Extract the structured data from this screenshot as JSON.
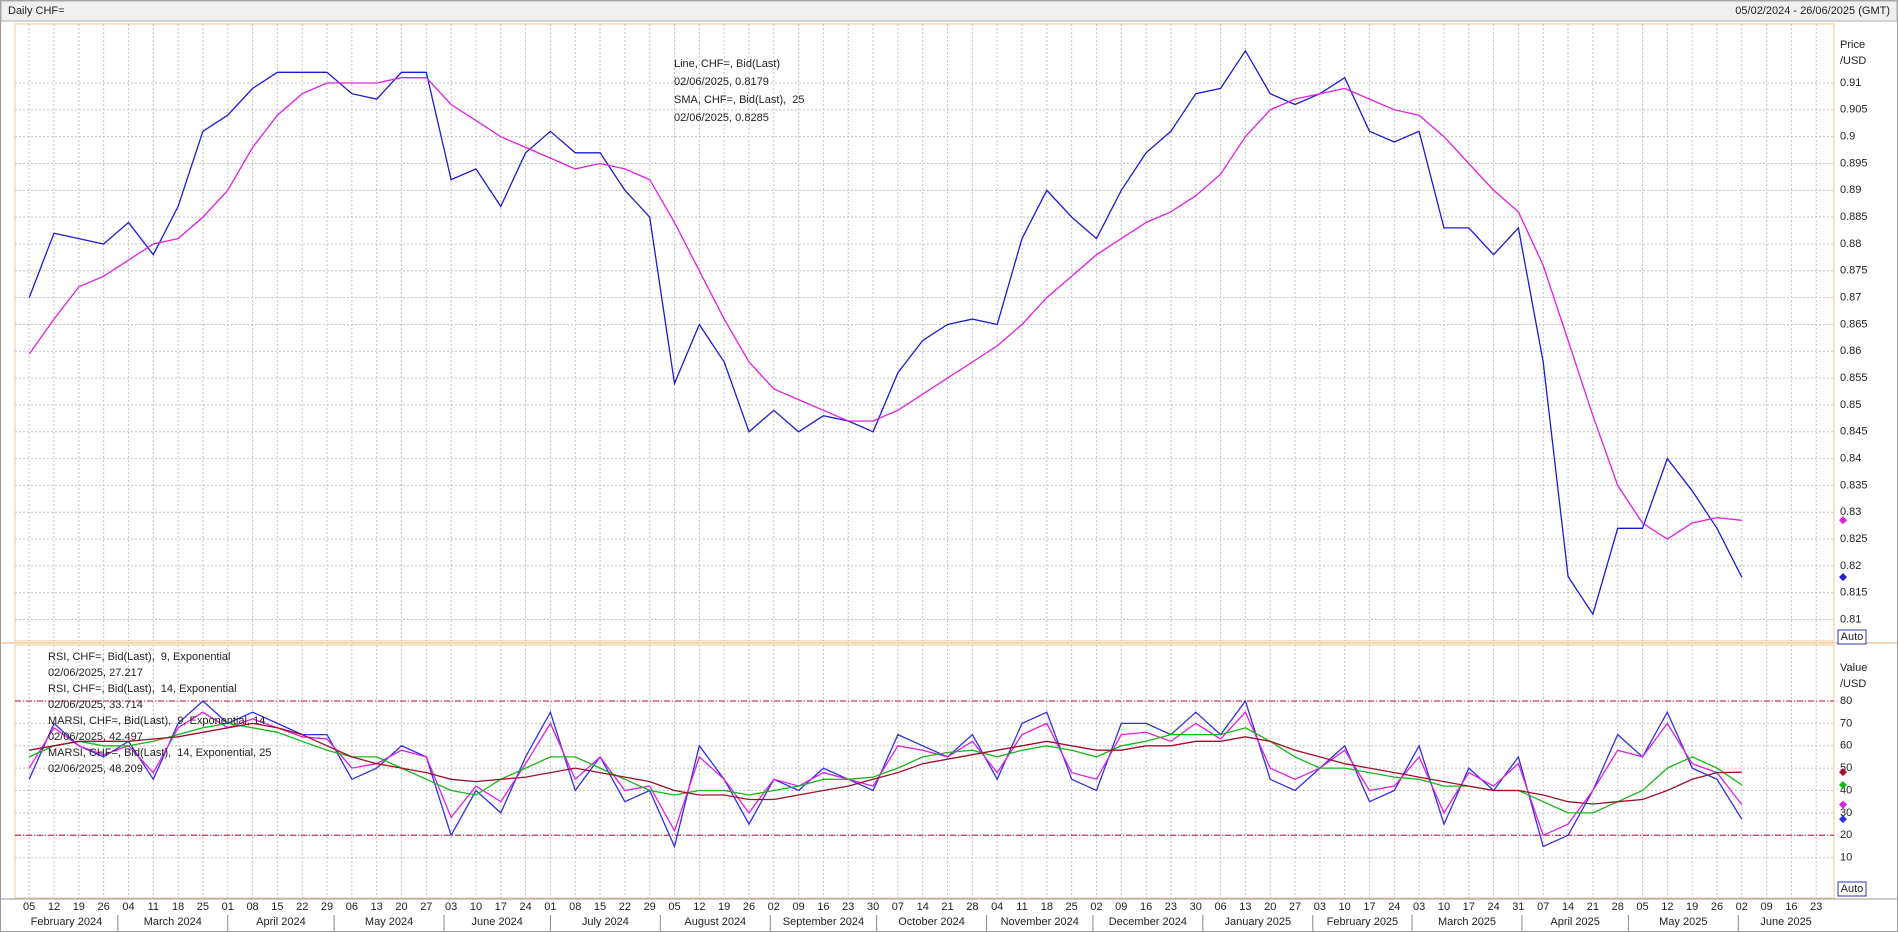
{
  "header": {
    "title": "Daily CHF=",
    "date_range": "05/02/2024 - 26/06/2025 (GMT)"
  },
  "chart_data": [
    {
      "type": "line",
      "y_label": [
        "Price",
        "/USD"
      ],
      "auto_label": "Auto",
      "ylim": [
        0.806,
        0.921
      ],
      "yticks": [
        0.81,
        0.815,
        0.82,
        0.825,
        0.83,
        0.835,
        0.84,
        0.845,
        0.85,
        0.855,
        0.86,
        0.865,
        0.87,
        0.875,
        0.88,
        0.885,
        0.89,
        0.895,
        0.9,
        0.905,
        0.91
      ],
      "grid": true,
      "x": [
        "2024-02-05",
        "2024-02-12",
        "2024-02-19",
        "2024-02-26",
        "2024-03-04",
        "2024-03-11",
        "2024-03-18",
        "2024-03-25",
        "2024-04-01",
        "2024-04-08",
        "2024-04-15",
        "2024-04-22",
        "2024-04-29",
        "2024-05-06",
        "2024-05-13",
        "2024-05-20",
        "2024-05-27",
        "2024-06-03",
        "2024-06-10",
        "2024-06-17",
        "2024-06-24",
        "2024-07-01",
        "2024-07-08",
        "2024-07-15",
        "2024-07-22",
        "2024-07-29",
        "2024-08-05",
        "2024-08-12",
        "2024-08-19",
        "2024-08-26",
        "2024-09-02",
        "2024-09-09",
        "2024-09-16",
        "2024-09-23",
        "2024-09-30",
        "2024-10-07",
        "2024-10-14",
        "2024-10-21",
        "2024-10-28",
        "2024-11-04",
        "2024-11-11",
        "2024-11-18",
        "2024-11-25",
        "2024-12-02",
        "2024-12-09",
        "2024-12-16",
        "2024-12-23",
        "2024-12-30",
        "2025-01-06",
        "2025-01-13",
        "2025-01-20",
        "2025-01-27",
        "2025-02-03",
        "2025-02-10",
        "2025-02-17",
        "2025-02-24",
        "2025-03-03",
        "2025-03-10",
        "2025-03-17",
        "2025-03-24",
        "2025-03-31",
        "2025-04-07",
        "2025-04-14",
        "2025-04-21",
        "2025-04-28",
        "2025-05-05",
        "2025-05-12",
        "2025-05-19",
        "2025-05-26",
        "2025-06-02"
      ],
      "series": [
        {
          "name": "Line, CHF=, Bid(Last)",
          "last_label": "02/06/2025, 0.8179",
          "color": "#1c1cd0",
          "values": [
            0.87,
            0.882,
            0.881,
            0.88,
            0.884,
            0.878,
            0.887,
            0.901,
            0.904,
            0.909,
            0.912,
            0.912,
            0.912,
            0.908,
            0.907,
            0.912,
            0.912,
            0.892,
            0.894,
            0.887,
            0.897,
            0.901,
            0.897,
            0.897,
            0.89,
            0.885,
            0.854,
            0.865,
            0.858,
            0.845,
            0.849,
            0.845,
            0.848,
            0.847,
            0.845,
            0.856,
            0.862,
            0.865,
            0.866,
            0.865,
            0.881,
            0.89,
            0.885,
            0.881,
            0.89,
            0.897,
            0.901,
            0.908,
            0.909,
            0.916,
            0.908,
            0.906,
            0.908,
            0.911,
            0.901,
            0.899,
            0.901,
            0.883,
            0.883,
            0.878,
            0.883,
            0.858,
            0.818,
            0.811,
            0.827,
            0.827,
            0.84,
            0.834,
            0.827,
            0.8179
          ]
        },
        {
          "name": "SMA, CHF=, Bid(Last),  25",
          "last_label": "02/06/2025, 0.8285",
          "color": "#e020e0",
          "values": [
            0.8595,
            0.866,
            0.872,
            0.874,
            0.877,
            0.88,
            0.881,
            0.885,
            0.89,
            0.898,
            0.904,
            0.908,
            0.91,
            0.91,
            0.91,
            0.911,
            0.911,
            0.906,
            0.903,
            0.9,
            0.898,
            0.896,
            0.894,
            0.895,
            0.894,
            0.892,
            0.884,
            0.875,
            0.866,
            0.858,
            0.853,
            0.851,
            0.849,
            0.847,
            0.847,
            0.849,
            0.852,
            0.855,
            0.858,
            0.861,
            0.865,
            0.87,
            0.874,
            0.878,
            0.881,
            0.884,
            0.886,
            0.889,
            0.893,
            0.9,
            0.905,
            0.907,
            0.908,
            0.909,
            0.907,
            0.905,
            0.904,
            0.9,
            0.895,
            0.89,
            0.886,
            0.876,
            0.862,
            0.848,
            0.835,
            0.828,
            0.825,
            0.828,
            0.829,
            0.8285
          ]
        }
      ]
    },
    {
      "type": "line",
      "y_label": [
        "Value",
        "/USD"
      ],
      "auto_label": "Auto",
      "ylim": [
        -8,
        105
      ],
      "yticks": [
        10,
        20,
        30,
        40,
        50,
        60,
        70,
        80
      ],
      "grid": true,
      "hlines": [
        20,
        80
      ],
      "xlim": [
        "2024-02-01",
        "2025-06-28"
      ],
      "xticks": [
        {
          "value": "2024-02-05",
          "label": "05"
        },
        {
          "value": "2024-02-12",
          "label": "12"
        },
        {
          "value": "2024-02-19",
          "label": "19"
        },
        {
          "value": "2024-02-26",
          "label": "26"
        },
        {
          "value": "2024-03-04",
          "label": "04"
        },
        {
          "value": "2024-03-11",
          "label": "11"
        },
        {
          "value": "2024-03-18",
          "label": "18"
        },
        {
          "value": "2024-03-25",
          "label": "25"
        },
        {
          "value": "2024-04-01",
          "label": "01"
        },
        {
          "value": "2024-04-08",
          "label": "08"
        },
        {
          "value": "2024-04-15",
          "label": "15"
        },
        {
          "value": "2024-04-22",
          "label": "22"
        },
        {
          "value": "2024-04-29",
          "label": "29"
        },
        {
          "value": "2024-05-06",
          "label": "06"
        },
        {
          "value": "2024-05-13",
          "label": "13"
        },
        {
          "value": "2024-05-20",
          "label": "20"
        },
        {
          "value": "2024-05-27",
          "label": "27"
        },
        {
          "value": "2024-06-03",
          "label": "03"
        },
        {
          "value": "2024-06-10",
          "label": "10"
        },
        {
          "value": "2024-06-17",
          "label": "17"
        },
        {
          "value": "2024-06-24",
          "label": "24"
        },
        {
          "value": "2024-07-01",
          "label": "01"
        },
        {
          "value": "2024-07-08",
          "label": "08"
        },
        {
          "value": "2024-07-15",
          "label": "15"
        },
        {
          "value": "2024-07-22",
          "label": "22"
        },
        {
          "value": "2024-07-29",
          "label": "29"
        },
        {
          "value": "2024-08-05",
          "label": "05"
        },
        {
          "value": "2024-08-12",
          "label": "12"
        },
        {
          "value": "2024-08-19",
          "label": "19"
        },
        {
          "value": "2024-08-26",
          "label": "26"
        },
        {
          "value": "2024-09-02",
          "label": "02"
        },
        {
          "value": "2024-09-09",
          "label": "09"
        },
        {
          "value": "2024-09-16",
          "label": "16"
        },
        {
          "value": "2024-09-23",
          "label": "23"
        },
        {
          "value": "2024-09-30",
          "label": "30"
        },
        {
          "value": "2024-10-07",
          "label": "07"
        },
        {
          "value": "2024-10-14",
          "label": "14"
        },
        {
          "value": "2024-10-21",
          "label": "21"
        },
        {
          "value": "2024-10-28",
          "label": "28"
        },
        {
          "value": "2024-11-04",
          "label": "04"
        },
        {
          "value": "2024-11-11",
          "label": "11"
        },
        {
          "value": "2024-11-18",
          "label": "18"
        },
        {
          "value": "2024-11-25",
          "label": "25"
        },
        {
          "value": "2024-12-02",
          "label": "02"
        },
        {
          "value": "2024-12-09",
          "label": "09"
        },
        {
          "value": "2024-12-16",
          "label": "16"
        },
        {
          "value": "2024-12-23",
          "label": "23"
        },
        {
          "value": "2024-12-30",
          "label": "30"
        },
        {
          "value": "2025-01-06",
          "label": "06"
        },
        {
          "value": "2025-01-13",
          "label": "13"
        },
        {
          "value": "2025-01-20",
          "label": "20"
        },
        {
          "value": "2025-01-27",
          "label": "27"
        },
        {
          "value": "2025-02-03",
          "label": "03"
        },
        {
          "value": "2025-02-10",
          "label": "10"
        },
        {
          "value": "2025-02-17",
          "label": "17"
        },
        {
          "value": "2025-02-24",
          "label": "24"
        },
        {
          "value": "2025-03-03",
          "label": "03"
        },
        {
          "value": "2025-03-10",
          "label": "10"
        },
        {
          "value": "2025-03-17",
          "label": "17"
        },
        {
          "value": "2025-03-24",
          "label": "24"
        },
        {
          "value": "2025-03-31",
          "label": "31"
        },
        {
          "value": "2025-04-07",
          "label": "07"
        },
        {
          "value": "2025-04-14",
          "label": "14"
        },
        {
          "value": "2025-04-21",
          "label": "21"
        },
        {
          "value": "2025-04-28",
          "label": "28"
        },
        {
          "value": "2025-05-05",
          "label": "05"
        },
        {
          "value": "2025-05-12",
          "label": "12"
        },
        {
          "value": "2025-05-19",
          "label": "19"
        },
        {
          "value": "2025-05-26",
          "label": "26"
        },
        {
          "value": "2025-06-02",
          "label": "02"
        },
        {
          "value": "2025-06-09",
          "label": "09"
        },
        {
          "value": "2025-06-16",
          "label": "16"
        },
        {
          "value": "2025-06-23",
          "label": "23"
        }
      ],
      "months": [
        {
          "value": "2024-02",
          "label": "February 2024"
        },
        {
          "value": "2024-03",
          "label": "March 2024"
        },
        {
          "value": "2024-04",
          "label": "April 2024"
        },
        {
          "value": "2024-05",
          "label": "May 2024"
        },
        {
          "value": "2024-06",
          "label": "June 2024"
        },
        {
          "value": "2024-07",
          "label": "July 2024"
        },
        {
          "value": "2024-08",
          "label": "August 2024"
        },
        {
          "value": "2024-09",
          "label": "September 2024"
        },
        {
          "value": "2024-10",
          "label": "October 2024"
        },
        {
          "value": "2024-11",
          "label": "November 2024"
        },
        {
          "value": "2024-12",
          "label": "December 2024"
        },
        {
          "value": "2025-01",
          "label": "January 2025"
        },
        {
          "value": "2025-02",
          "label": "February 2025"
        },
        {
          "value": "2025-03",
          "label": "March 2025"
        },
        {
          "value": "2025-04",
          "label": "April 2025"
        },
        {
          "value": "2025-05",
          "label": "May 2025"
        },
        {
          "value": "2025-06",
          "label": "June 2025"
        }
      ],
      "x": [
        "2024-02-05",
        "2024-02-12",
        "2024-02-19",
        "2024-02-26",
        "2024-03-04",
        "2024-03-11",
        "2024-03-18",
        "2024-03-25",
        "2024-04-01",
        "2024-04-08",
        "2024-04-15",
        "2024-04-22",
        "2024-04-29",
        "2024-05-06",
        "2024-05-13",
        "2024-05-20",
        "2024-05-27",
        "2024-06-03",
        "2024-06-10",
        "2024-06-17",
        "2024-06-24",
        "2024-07-01",
        "2024-07-08",
        "2024-07-15",
        "2024-07-22",
        "2024-07-29",
        "2024-08-05",
        "2024-08-12",
        "2024-08-19",
        "2024-08-26",
        "2024-09-02",
        "2024-09-09",
        "2024-09-16",
        "2024-09-23",
        "2024-09-30",
        "2024-10-07",
        "2024-10-14",
        "2024-10-21",
        "2024-10-28",
        "2024-11-04",
        "2024-11-11",
        "2024-11-18",
        "2024-11-25",
        "2024-12-02",
        "2024-12-09",
        "2024-12-16",
        "2024-12-23",
        "2024-12-30",
        "2025-01-06",
        "2025-01-13",
        "2025-01-20",
        "2025-01-27",
        "2025-02-03",
        "2025-02-10",
        "2025-02-17",
        "2025-02-24",
        "2025-03-03",
        "2025-03-10",
        "2025-03-17",
        "2025-03-24",
        "2025-03-31",
        "2025-04-07",
        "2025-04-14",
        "2025-04-21",
        "2025-04-28",
        "2025-05-05",
        "2025-05-12",
        "2025-05-19",
        "2025-05-26",
        "2025-06-02"
      ],
      "series": [
        {
          "name": "RSI, CHF=, Bid(Last),  9, Exponential",
          "last_label": "02/06/2025, 27.217",
          "color": "#3030e0",
          "values": [
            45,
            70,
            60,
            55,
            62,
            45,
            70,
            80,
            70,
            75,
            70,
            65,
            65,
            45,
            50,
            60,
            55,
            20,
            40,
            30,
            55,
            75,
            40,
            55,
            35,
            40,
            15,
            60,
            45,
            25,
            45,
            40,
            50,
            45,
            40,
            65,
            60,
            55,
            65,
            45,
            70,
            75,
            45,
            40,
            70,
            70,
            65,
            75,
            65,
            80,
            45,
            40,
            50,
            60,
            35,
            40,
            60,
            25,
            50,
            40,
            55,
            15,
            20,
            40,
            65,
            55,
            75,
            50,
            45,
            27.217
          ]
        },
        {
          "name": "RSI, CHF=, Bid(Last),  14, Exponential",
          "last_label": "02/06/2025, 33.714",
          "color": "#e020e0",
          "values": [
            50,
            68,
            60,
            56,
            60,
            48,
            68,
            75,
            68,
            72,
            68,
            64,
            63,
            50,
            52,
            58,
            55,
            28,
            42,
            35,
            52,
            70,
            45,
            55,
            40,
            42,
            22,
            55,
            45,
            30,
            45,
            42,
            48,
            45,
            42,
            60,
            58,
            55,
            62,
            48,
            65,
            70,
            48,
            45,
            65,
            66,
            62,
            70,
            63,
            75,
            50,
            45,
            50,
            58,
            40,
            42,
            55,
            30,
            48,
            42,
            52,
            20,
            25,
            40,
            58,
            55,
            70,
            52,
            48,
            33.714
          ]
        },
        {
          "name": "MARSI, CHF=, Bid(Last),  9, Exponential, 14",
          "last_label": "02/06/2025, 42.497",
          "color": "#18b818",
          "values": [
            55,
            60,
            62,
            60,
            60,
            62,
            65,
            68,
            70,
            68,
            66,
            62,
            58,
            55,
            55,
            50,
            45,
            40,
            38,
            45,
            50,
            55,
            55,
            50,
            45,
            40,
            38,
            40,
            40,
            38,
            40,
            42,
            45,
            45,
            46,
            50,
            55,
            57,
            58,
            55,
            58,
            60,
            58,
            55,
            60,
            62,
            65,
            65,
            65,
            68,
            62,
            55,
            50,
            50,
            48,
            46,
            45,
            42,
            42,
            40,
            40,
            35,
            30,
            30,
            35,
            40,
            50,
            55,
            50,
            42.497
          ]
        },
        {
          "name": "MARSI, CHF=, Bid(Last),  14, Exponential, 25",
          "last_label": "02/06/2025, 48.209",
          "color": "#a0102c",
          "values": [
            58,
            60,
            62,
            62,
            62,
            63,
            64,
            66,
            68,
            70,
            68,
            65,
            60,
            55,
            52,
            50,
            48,
            45,
            44,
            45,
            46,
            48,
            50,
            48,
            46,
            44,
            40,
            38,
            38,
            36,
            36,
            38,
            40,
            42,
            45,
            48,
            52,
            54,
            56,
            58,
            60,
            62,
            60,
            58,
            58,
            60,
            60,
            62,
            62,
            64,
            62,
            58,
            55,
            52,
            50,
            48,
            46,
            44,
            42,
            40,
            40,
            38,
            35,
            34,
            35,
            36,
            40,
            45,
            48,
            48.209
          ]
        }
      ]
    }
  ]
}
